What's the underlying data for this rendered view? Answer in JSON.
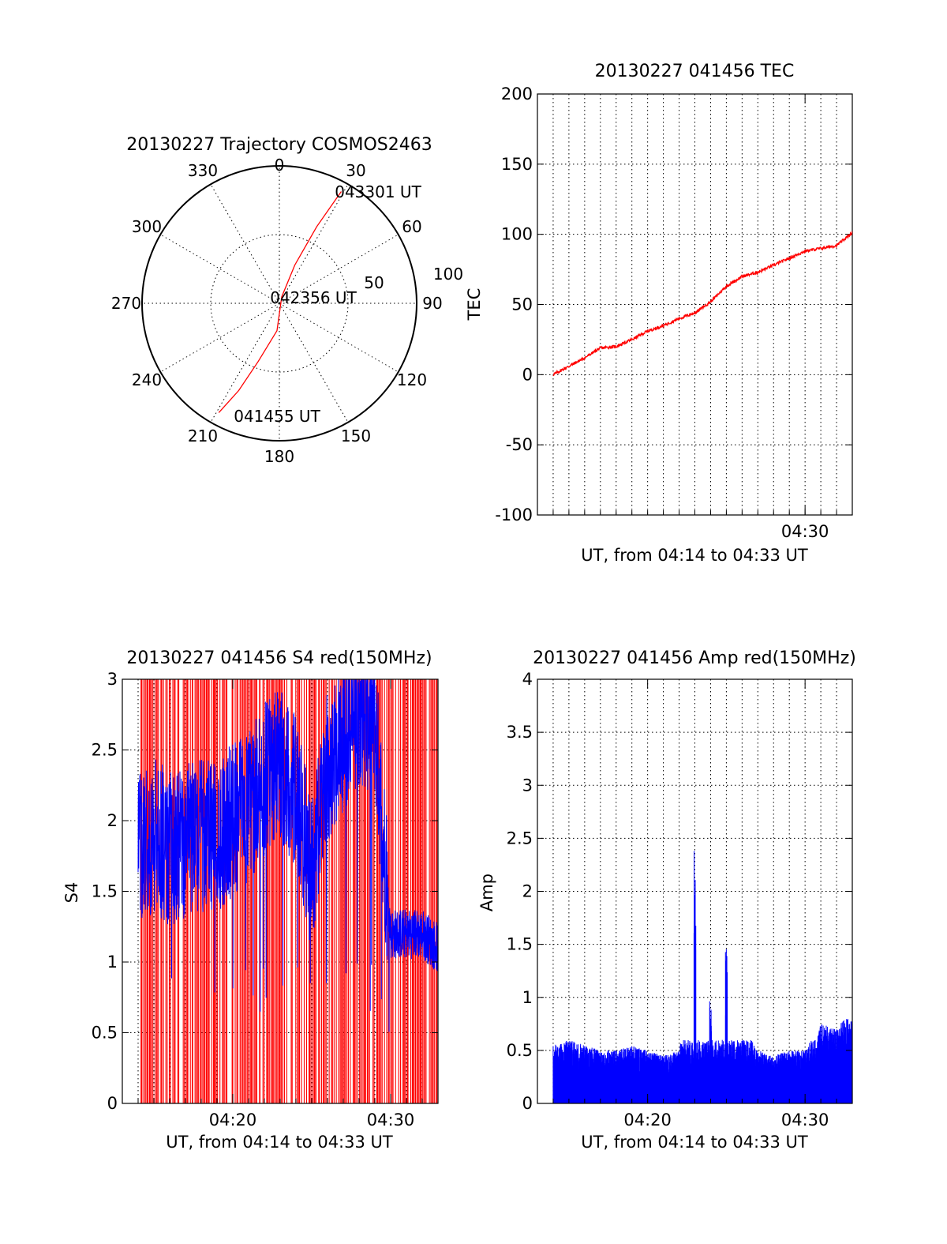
{
  "chart_data": [
    {
      "type": "polar",
      "title": "20130227 Trajectory COSMOS2463",
      "azimuth_ticks": [
        "0",
        "30",
        "60",
        "90",
        "120",
        "150",
        "180",
        "210",
        "240",
        "270",
        "300",
        "330"
      ],
      "radius_ticks": [
        "50",
        "100"
      ],
      "rlim": [
        0,
        100
      ],
      "grid": true,
      "series": [
        {
          "color": "#ff0000",
          "points": [
            {
              "az": 209,
              "r": 91,
              "label": "041455 UT"
            },
            {
              "az": 205,
              "r": 70
            },
            {
              "az": 200,
              "r": 45
            },
            {
              "az": 185,
              "r": 20
            },
            {
              "az": 20,
              "r": 5,
              "label": "042356 UT"
            },
            {
              "az": 22,
              "r": 30
            },
            {
              "az": 26,
              "r": 62
            },
            {
              "az": 29,
              "r": 93,
              "label": "043301 UT"
            }
          ]
        }
      ],
      "annotations": [
        "041455 UT",
        "042356 UT",
        "043301 UT"
      ]
    },
    {
      "type": "line",
      "title": "20130227 041456 TEC",
      "xlabel": "UT, from 04:14 to 04:33 UT",
      "ylabel": "TEC",
      "xlim": [
        "04:13",
        "04:33"
      ],
      "ylim": [
        -100,
        200
      ],
      "y_ticks": [
        "200",
        "150",
        "100",
        "50",
        "0",
        "-50",
        "-100"
      ],
      "x_ticks": [
        "04:30"
      ],
      "grid": true,
      "series": [
        {
          "color": "#ff0000",
          "x": [
            "04:14",
            "04:15",
            "04:16",
            "04:17",
            "04:18",
            "04:19",
            "04:20",
            "04:21",
            "04:22",
            "04:23",
            "04:24",
            "04:25",
            "04:26",
            "04:27",
            "04:28",
            "04:29",
            "04:30",
            "04:31",
            "04:32",
            "04:33"
          ],
          "y": [
            0,
            6,
            12,
            19,
            20,
            25,
            31,
            35,
            40,
            44,
            52,
            63,
            70,
            73,
            78,
            83,
            88,
            90,
            92,
            101
          ]
        }
      ]
    },
    {
      "type": "line",
      "title": "20130227 041456 S4 red(150MHz)",
      "xlabel": "UT, from 04:14 to 04:33 UT",
      "ylabel": "S4",
      "xlim": [
        "04:13",
        "04:33"
      ],
      "ylim": [
        0,
        3
      ],
      "y_ticks": [
        "3",
        "2.5",
        "2",
        "1.5",
        "1",
        "0.5",
        "0"
      ],
      "x_ticks": [
        "04:20",
        "04:30"
      ],
      "grid": true,
      "series": [
        {
          "color": "#ff0000",
          "description_values": "vertical spikes spanning 0 to 3 across 04:14-04:33"
        },
        {
          "color": "#0000ff",
          "x": [
            "04:14",
            "04:15",
            "04:16",
            "04:17",
            "04:18",
            "04:19",
            "04:20",
            "04:21",
            "04:22",
            "04:23",
            "04:24",
            "04:25",
            "04:26",
            "04:27",
            "04:28",
            "04:29",
            "04:30",
            "04:31",
            "04:32",
            "04:33"
          ],
          "y": [
            1.8,
            1.9,
            1.8,
            1.85,
            1.9,
            1.9,
            2.0,
            2.1,
            2.3,
            2.4,
            2.2,
            1.6,
            2.4,
            2.6,
            2.8,
            2.7,
            1.2,
            1.2,
            1.2,
            1.1
          ]
        }
      ]
    },
    {
      "type": "line",
      "title": "20130227 041456 Amp red(150MHz)",
      "xlabel": "UT, from 04:14 to 04:33 UT",
      "ylabel": "Amp",
      "xlim": [
        "04:13",
        "04:33"
      ],
      "ylim": [
        0,
        4
      ],
      "y_ticks": [
        "4",
        "3.5",
        "3",
        "2.5",
        "2",
        "1.5",
        "1",
        "0.5",
        "0"
      ],
      "x_ticks": [
        "04:20",
        "04:30"
      ],
      "grid": true,
      "series": [
        {
          "color": "#0000ff",
          "x": [
            "04:14",
            "04:15",
            "04:16",
            "04:17",
            "04:18",
            "04:19",
            "04:20",
            "04:21",
            "04:22",
            "04:23",
            "04:24",
            "04:25",
            "04:26",
            "04:27",
            "04:28",
            "04:29",
            "04:30",
            "04:31",
            "04:32",
            "04:33"
          ],
          "y": [
            0.55,
            0.6,
            0.55,
            0.5,
            0.5,
            0.55,
            0.5,
            0.45,
            0.5,
            2.55,
            0.9,
            1.6,
            0.75,
            0.5,
            0.45,
            0.5,
            0.5,
            0.75,
            0.7,
            0.9
          ]
        }
      ]
    }
  ]
}
